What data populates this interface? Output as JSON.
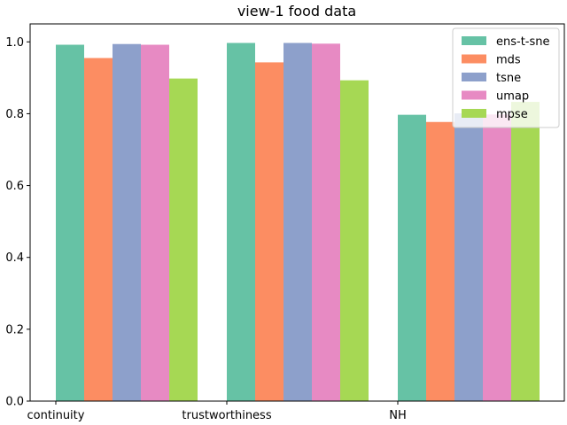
{
  "chart_data": {
    "type": "bar",
    "title": "view-1 food data",
    "xlabel": "",
    "ylabel": "",
    "categories": [
      "continuity",
      "trustworthiness",
      "NH"
    ],
    "ylim": [
      0.0,
      1.05
    ],
    "yticks": [
      "0.0",
      "0.2",
      "0.4",
      "0.6",
      "0.8",
      "1.0"
    ],
    "grid": false,
    "legend_position": "top-right",
    "series": [
      {
        "name": "ens-t-sne",
        "color": "#66c2a5",
        "values": [
          0.992,
          0.997,
          0.797
        ]
      },
      {
        "name": "mds",
        "color": "#fc8d62",
        "values": [
          0.955,
          0.943,
          0.777
        ]
      },
      {
        "name": "tsne",
        "color": "#8da0cb",
        "values": [
          0.994,
          0.997,
          0.801
        ]
      },
      {
        "name": "umap",
        "color": "#e78ac3",
        "values": [
          0.992,
          0.995,
          0.798
        ]
      },
      {
        "name": "mpse",
        "color": "#a6d854",
        "values": [
          0.898,
          0.893,
          0.833
        ]
      }
    ]
  }
}
